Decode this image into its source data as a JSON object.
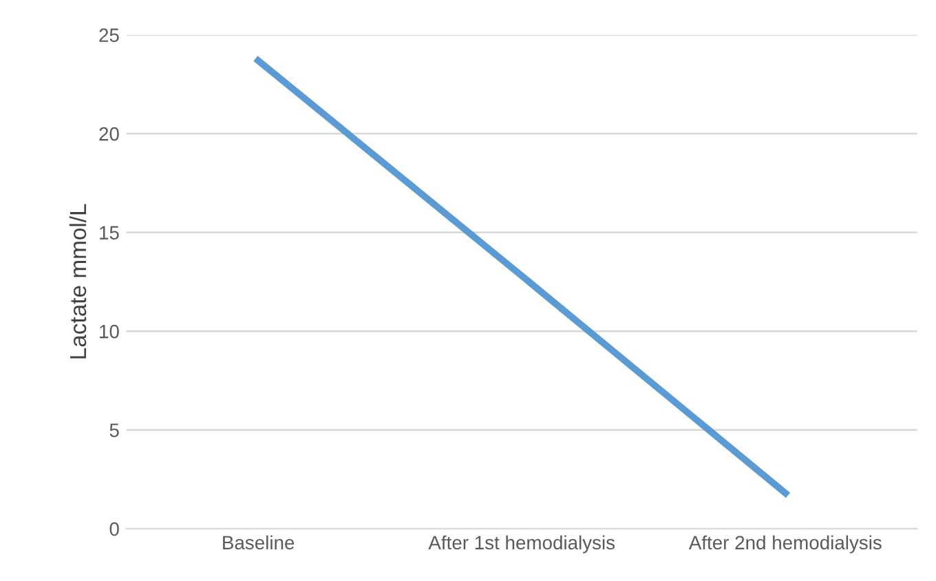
{
  "chart_data": {
    "type": "line",
    "ylabel": "Lactate mmol/L",
    "categories": [
      "Baseline",
      "After 1st hemodialysis",
      "After 2nd hemodialysis"
    ],
    "series": [
      {
        "color": "#5b9bd5",
        "values": [
          23.7,
          12.8,
          1.8
        ]
      }
    ],
    "ylim": [
      0,
      25
    ],
    "yticks": [
      0,
      5,
      10,
      15,
      20,
      25
    ],
    "grid": "y",
    "marker": "none",
    "line_style": "solid"
  }
}
